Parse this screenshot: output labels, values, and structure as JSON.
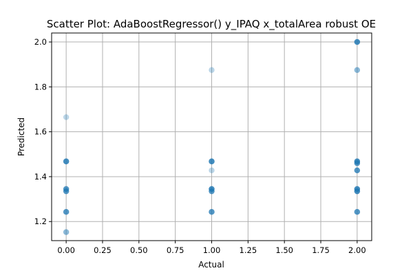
{
  "chart_data": {
    "type": "scatter",
    "title": "Scatter Plot: AdaBoostRegressor() y_IPAQ x_totalArea robust OE",
    "xlabel": "Actual",
    "ylabel": "Predicted",
    "xlim": [
      -0.1,
      2.1
    ],
    "ylim": [
      1.115,
      2.04
    ],
    "xticks": [
      0.0,
      0.25,
      0.5,
      0.75,
      1.0,
      1.25,
      1.5,
      1.75,
      2.0
    ],
    "xtick_labels": [
      "0.00",
      "0.25",
      "0.50",
      "0.75",
      "1.00",
      "1.25",
      "1.50",
      "1.75",
      "2.00"
    ],
    "yticks": [
      1.2,
      1.4,
      1.6,
      1.8,
      2.0
    ],
    "ytick_labels": [
      "1.2",
      "1.4",
      "1.6",
      "1.8",
      "2.0"
    ],
    "grid": true,
    "marker_color": "#1f77b4",
    "points": [
      {
        "x": 0,
        "y": 1.665,
        "n": 1
      },
      {
        "x": 0,
        "y": 1.468,
        "n": 5
      },
      {
        "x": 0,
        "y": 1.345,
        "n": 4
      },
      {
        "x": 0,
        "y": 1.335,
        "n": 4
      },
      {
        "x": 0,
        "y": 1.243,
        "n": 4
      },
      {
        "x": 0,
        "y": 1.153,
        "n": 2
      },
      {
        "x": 1,
        "y": 1.875,
        "n": 1
      },
      {
        "x": 1,
        "y": 1.468,
        "n": 5
      },
      {
        "x": 1,
        "y": 1.428,
        "n": 1
      },
      {
        "x": 1,
        "y": 1.345,
        "n": 5
      },
      {
        "x": 1,
        "y": 1.335,
        "n": 4
      },
      {
        "x": 1,
        "y": 1.243,
        "n": 4
      },
      {
        "x": 2,
        "y": 2.0,
        "n": 5
      },
      {
        "x": 2,
        "y": 1.875,
        "n": 2
      },
      {
        "x": 2,
        "y": 1.468,
        "n": 5
      },
      {
        "x": 2,
        "y": 1.46,
        "n": 4
      },
      {
        "x": 2,
        "y": 1.428,
        "n": 4
      },
      {
        "x": 2,
        "y": 1.345,
        "n": 5
      },
      {
        "x": 2,
        "y": 1.335,
        "n": 5
      },
      {
        "x": 2,
        "y": 1.243,
        "n": 4
      }
    ]
  }
}
